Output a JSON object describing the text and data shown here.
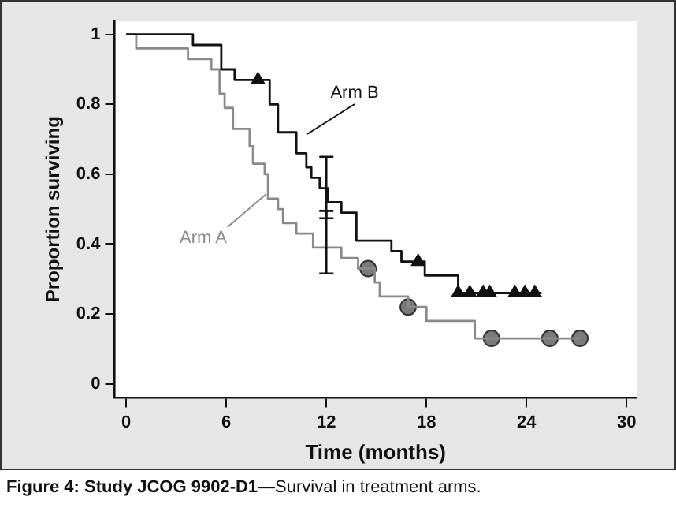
{
  "chart_data": {
    "type": "step",
    "xlabel": "Time (months)",
    "ylabel": "Proportion surviving",
    "xlim": [
      -0.7,
      30.6
    ],
    "ylim": [
      -0.04,
      1.04
    ],
    "xticks": [
      0,
      6,
      12,
      18,
      24,
      30
    ],
    "yticks": [
      0,
      0.2,
      0.4,
      0.6,
      0.8,
      1
    ],
    "grid": false,
    "legend": false,
    "annotations": [
      "Figure 4: Study JCOG 9902-D1—Survival in treatment arms."
    ],
    "series": [
      {
        "name": "Arm B",
        "type": "step",
        "color": "#111111",
        "marker": "none",
        "x": [
          0,
          4,
          5.7,
          6.5,
          8.6,
          9.1,
          10.2,
          10.8,
          11.1,
          11.6,
          12,
          12.1,
          12.9,
          13.8,
          15.9,
          16.5,
          17.9,
          19.9,
          24.9
        ],
        "values": [
          1,
          0.97,
          0.9,
          0.87,
          0.8,
          0.72,
          0.66,
          0.62,
          0.59,
          0.56,
          0.56,
          0.52,
          0.49,
          0.41,
          0.38,
          0.35,
          0.31,
          0.26,
          0.26
        ],
        "errors": [
          null,
          null,
          null,
          null,
          null,
          null,
          null,
          null,
          null,
          null,
          [
            0.474,
            0.65
          ],
          null,
          null,
          null,
          null,
          null,
          null,
          null,
          null
        ]
      },
      {
        "name": "Arm A",
        "type": "step",
        "color": "#8a8a8a",
        "marker": "none",
        "x": [
          0,
          0.6,
          3.7,
          5.1,
          5.6,
          5.9,
          6.4,
          7.4,
          7.6,
          8.3,
          8.5,
          9.1,
          9.4,
          10.2,
          11.2,
          12,
          12.9,
          13.9,
          14.9,
          15.2,
          16.9,
          18,
          20.9,
          27.2
        ],
        "values": [
          1,
          0.96,
          0.93,
          0.9,
          0.83,
          0.79,
          0.73,
          0.68,
          0.63,
          0.6,
          0.53,
          0.5,
          0.46,
          0.43,
          0.39,
          0.39,
          0.36,
          0.33,
          0.29,
          0.25,
          0.22,
          0.18,
          0.13,
          0.13
        ],
        "errors": [
          null,
          null,
          null,
          null,
          null,
          null,
          null,
          null,
          null,
          null,
          null,
          null,
          null,
          null,
          null,
          [
            0.316,
            0.495
          ],
          null,
          null,
          null,
          null,
          null,
          null,
          null,
          null
        ]
      },
      {
        "type": "scatter",
        "color": "#111111",
        "marker": "triangle",
        "x": [
          7.9,
          17.5,
          19.9,
          20.6,
          21.4,
          21.8,
          23.3,
          23.9,
          24.5
        ],
        "values": [
          0.87,
          0.35,
          0.26,
          0.26,
          0.26,
          0.26,
          0.26,
          0.26,
          0.26
        ]
      },
      {
        "type": "scatter",
        "color": "#7a7a7a",
        "marker": "circle",
        "x": [
          14.5,
          16.9,
          21.9,
          25.4,
          27.2
        ],
        "values": [
          0.33,
          0.22,
          0.13,
          0.13,
          0.13
        ]
      }
    ]
  }
}
